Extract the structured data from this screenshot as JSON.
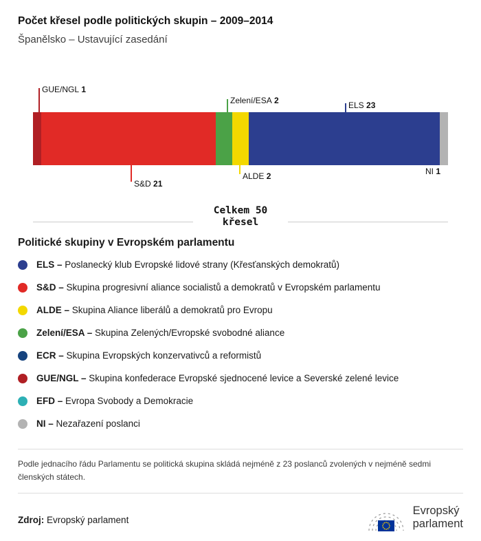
{
  "header": {
    "title": "Počet křesel podle politických skupin – 2009–2014",
    "subtitle": "Španělsko – Ustavující zasedání"
  },
  "chart_data": {
    "type": "bar",
    "variant": "horizontal-stacked",
    "title": "Počet křesel podle politických skupin – 2009–2014",
    "subtitle": "Španělsko – Ustavující zasedání",
    "total_seats": 50,
    "total_label_line1": "Celkem 50",
    "total_label_line2": "křesel",
    "segments": [
      {
        "name": "GUE/NGL",
        "value": 1,
        "color": "#b01f24"
      },
      {
        "name": "S&D",
        "value": 21,
        "color": "#e12a26"
      },
      {
        "name": "Zelení/ESA",
        "value": 2,
        "color": "#4ba247"
      },
      {
        "name": "ALDE",
        "value": 2,
        "color": "#f3d800"
      },
      {
        "name": "ELS",
        "value": 23,
        "color": "#2c3e8f"
      },
      {
        "name": "NI",
        "value": 1,
        "color": "#b3b3b3"
      }
    ]
  },
  "legend": {
    "title": "Politické skupiny v Evropském parlamentu",
    "items": [
      {
        "abbr": "ELS –",
        "desc": "Poslanecký klub Evropské lidové strany (Křesťanských demokratů)",
        "color": "#2c3e8f"
      },
      {
        "abbr": "S&D –",
        "desc": "Skupina progresivní aliance socialistů a demokratů v Evropském parlamentu",
        "color": "#e12a26"
      },
      {
        "abbr": "ALDE –",
        "desc": "Skupina Aliance liberálů a demokratů pro Evropu",
        "color": "#f3d800"
      },
      {
        "abbr": "Zelení/ESA –",
        "desc": "Skupina Zelených/Evropské svobodné aliance",
        "color": "#4ba247"
      },
      {
        "abbr": "ECR –",
        "desc": "Skupina Evropských konzervativců a reformistů",
        "color": "#16437e"
      },
      {
        "abbr": "GUE/NGL –",
        "desc": "Skupina konfederace Evropské sjednocené levice a Severské zelené levice",
        "color": "#b01f24"
      },
      {
        "abbr": "EFD –",
        "desc": "Evropa Svobody a Demokracie",
        "color": "#2db0b5"
      },
      {
        "abbr": "NI –",
        "desc": "Nezařazení poslanci",
        "color": "#b3b3b3"
      }
    ]
  },
  "footnote": "Podle jednacího řádu Parlamentu se politická skupina skládá nejméně z 23 poslanců zvolených v nejméně sedmi členských státech.",
  "source": {
    "label": "Zdroj:",
    "value": "Evropský parlament"
  },
  "logo": {
    "line1": "Evropský",
    "line2": "parlament"
  }
}
